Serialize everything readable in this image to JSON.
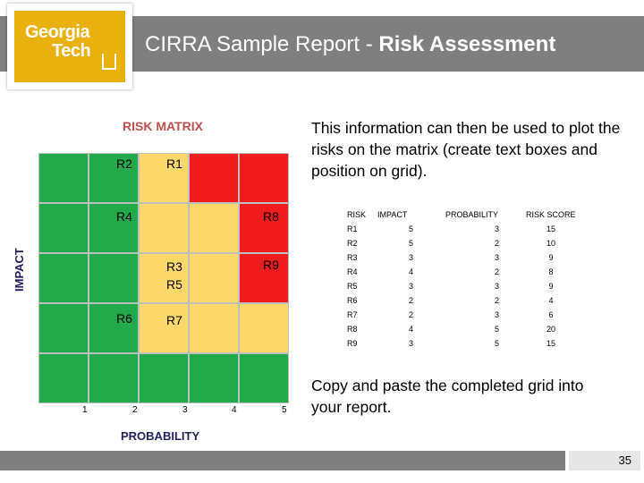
{
  "header": {
    "title_part1": "CIRRA Sample Report - ",
    "title_part2": "Risk  Assessment",
    "logo_line1": "Georgia",
    "logo_line2": "Tech"
  },
  "matrix": {
    "title": "RISK MATRIX",
    "y_label": "IMPACT",
    "x_label": "PROBABILITY",
    "x_ticks": [
      "1",
      "2",
      "3",
      "4",
      "5"
    ],
    "tags": {
      "r2": "R2",
      "r1": "R1",
      "r4": "R4",
      "r8": "R8",
      "r3": "R3",
      "r5": "R5",
      "r9": "R9",
      "r6": "R6",
      "r7": "R7"
    }
  },
  "text": {
    "instruction": "This information can then be used to plot the risks on the matrix (create text boxes and position on grid).",
    "copy_note": "Copy and paste the completed grid into your report."
  },
  "risk_table": {
    "headers": [
      "RISK",
      "IMPACT",
      "PROBABILITY",
      "RISK SCORE"
    ],
    "rows": [
      [
        "R1",
        "5",
        "3",
        "15"
      ],
      [
        "R2",
        "5",
        "2",
        "10"
      ],
      [
        "R3",
        "3",
        "3",
        "9"
      ],
      [
        "R4",
        "4",
        "2",
        "8"
      ],
      [
        "R5",
        "3",
        "3",
        "9"
      ],
      [
        "R6",
        "2",
        "2",
        "4"
      ],
      [
        "R7",
        "2",
        "3",
        "6"
      ],
      [
        "R8",
        "4",
        "5",
        "20"
      ],
      [
        "R9",
        "3",
        "5",
        "15"
      ]
    ]
  },
  "footer": {
    "page_number": "35"
  },
  "colors": {
    "header": "#7f7f7f",
    "gold": "#eab10e",
    "green": "#22a94a",
    "yellow": "#fcd76a",
    "red": "#ee1c1c"
  }
}
